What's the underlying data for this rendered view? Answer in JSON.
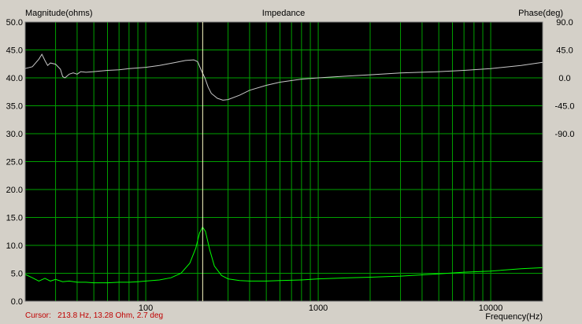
{
  "chart_data": {
    "type": "line",
    "title": "Impedance",
    "left_axis_label": "Magnitude(ohms)",
    "right_axis_label": "Phase(deg)",
    "xlabel": "Frequency(Hz)",
    "x_scale": "log",
    "xlim": [
      20,
      20000
    ],
    "ylim_left": [
      0,
      50
    ],
    "ylim_right_ticks": [
      90,
      45,
      0,
      -45,
      -90
    ],
    "left_ticks": [
      "50.0",
      "45.0",
      "40.0",
      "35.0",
      "30.0",
      "25.0",
      "20.0",
      "15.0",
      "10.0",
      "5.0",
      "0.0"
    ],
    "right_ticks": [
      "90.0",
      "45.0",
      "0.0",
      "-45.0",
      "-90.0"
    ],
    "x_ticks": [
      "100",
      "1000",
      "10000"
    ],
    "x_tick_values": [
      100,
      1000,
      10000
    ],
    "grid": true,
    "colors": {
      "plot_bg": "#000000",
      "grid": "#00a000",
      "magnitude": "#00ff00",
      "phase": "#c8c8c8",
      "cursor": "#ffffc8",
      "frame": "#d4d0c8"
    },
    "series": [
      {
        "name": "Magnitude",
        "units": "ohms",
        "points": [
          [
            20,
            4.8
          ],
          [
            22,
            4.2
          ],
          [
            24,
            3.6
          ],
          [
            26,
            4.1
          ],
          [
            28,
            3.6
          ],
          [
            30,
            3.9
          ],
          [
            33,
            3.5
          ],
          [
            36,
            3.6
          ],
          [
            40,
            3.4
          ],
          [
            45,
            3.4
          ],
          [
            50,
            3.3
          ],
          [
            60,
            3.3
          ],
          [
            70,
            3.4
          ],
          [
            80,
            3.4
          ],
          [
            90,
            3.5
          ],
          [
            100,
            3.6
          ],
          [
            120,
            3.8
          ],
          [
            140,
            4.2
          ],
          [
            160,
            5.0
          ],
          [
            180,
            6.8
          ],
          [
            195,
            9.5
          ],
          [
            205,
            12.2
          ],
          [
            213.8,
            13.28
          ],
          [
            222,
            12.5
          ],
          [
            235,
            9.2
          ],
          [
            250,
            6.3
          ],
          [
            275,
            4.6
          ],
          [
            300,
            4.0
          ],
          [
            350,
            3.7
          ],
          [
            400,
            3.6
          ],
          [
            500,
            3.6
          ],
          [
            600,
            3.7
          ],
          [
            800,
            3.8
          ],
          [
            1000,
            4.0
          ],
          [
            1500,
            4.2
          ],
          [
            2000,
            4.3
          ],
          [
            3000,
            4.5
          ],
          [
            5000,
            4.9
          ],
          [
            7000,
            5.2
          ],
          [
            10000,
            5.4
          ],
          [
            15000,
            5.8
          ],
          [
            20000,
            6.0
          ]
        ]
      },
      {
        "name": "Phase",
        "units": "deg",
        "points": [
          [
            20,
            15
          ],
          [
            22,
            18
          ],
          [
            24,
            30
          ],
          [
            25,
            38
          ],
          [
            26,
            28
          ],
          [
            27,
            20
          ],
          [
            28,
            24
          ],
          [
            30,
            22
          ],
          [
            32,
            14
          ],
          [
            33,
            2
          ],
          [
            34,
            0
          ],
          [
            36,
            6
          ],
          [
            38,
            8
          ],
          [
            40,
            6
          ],
          [
            42,
            10
          ],
          [
            45,
            9
          ],
          [
            50,
            10
          ],
          [
            60,
            12
          ],
          [
            70,
            13
          ],
          [
            80,
            15
          ],
          [
            100,
            17
          ],
          [
            120,
            20
          ],
          [
            150,
            25
          ],
          [
            170,
            28
          ],
          [
            190,
            29
          ],
          [
            200,
            26
          ],
          [
            210,
            12
          ],
          [
            220,
            0
          ],
          [
            230,
            -15
          ],
          [
            240,
            -25
          ],
          [
            260,
            -33
          ],
          [
            280,
            -36
          ],
          [
            300,
            -35
          ],
          [
            350,
            -28
          ],
          [
            400,
            -20
          ],
          [
            500,
            -12
          ],
          [
            600,
            -7
          ],
          [
            800,
            -2
          ],
          [
            1000,
            0
          ],
          [
            1500,
            3
          ],
          [
            2000,
            5
          ],
          [
            3000,
            8
          ],
          [
            5000,
            10
          ],
          [
            7000,
            12
          ],
          [
            10000,
            15
          ],
          [
            15000,
            20
          ],
          [
            20000,
            25
          ]
        ]
      }
    ],
    "cursor": {
      "frequency": 213.8,
      "label": "Cursor:   213.8 Hz, 13.28 Ohm, 2.7 deg"
    }
  }
}
